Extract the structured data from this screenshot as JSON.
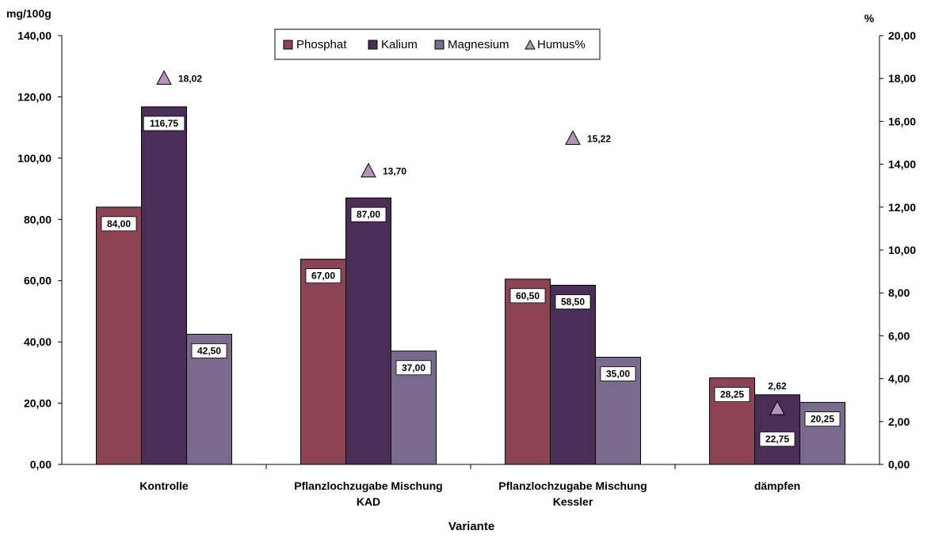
{
  "chart_data": {
    "type": "bar",
    "y_left_unit": "mg/100g",
    "y_right_unit": "%",
    "xlabel": "Variante",
    "categories": [
      [
        "Kontrolle"
      ],
      [
        "Pflanzlochzugabe Mischung",
        "KAD"
      ],
      [
        "Pflanzlochzugabe Mischung",
        "Kessler"
      ],
      [
        "dämpfen"
      ]
    ],
    "ylim_left": [
      0,
      140
    ],
    "ylim_right": [
      0,
      20
    ],
    "y_left_ticks": [
      "0,00",
      "20,00",
      "40,00",
      "60,00",
      "80,00",
      "100,00",
      "120,00",
      "140,00"
    ],
    "y_right_ticks": [
      "0,00",
      "2,00",
      "4,00",
      "6,00",
      "8,00",
      "10,00",
      "12,00",
      "14,00",
      "16,00",
      "18,00",
      "20,00"
    ],
    "series": [
      {
        "name": "Phosphat",
        "axis": "left",
        "kind": "bar",
        "color": "#8c4454",
        "values": [
          84.0,
          67.0,
          60.5,
          28.25
        ],
        "labels": [
          "84,00",
          "67,00",
          "60,50",
          "28,25"
        ]
      },
      {
        "name": "Kalium",
        "axis": "left",
        "kind": "bar",
        "color": "#4b2e57",
        "values": [
          116.75,
          87.0,
          58.5,
          22.75
        ],
        "labels": [
          "116,75",
          "87,00",
          "58,50",
          "22,75"
        ]
      },
      {
        "name": "Magnesium",
        "axis": "left",
        "kind": "bar",
        "color": "#7a6a8e",
        "values": [
          42.5,
          37.0,
          35.0,
          20.25
        ],
        "labels": [
          "42,50",
          "37,00",
          "35,00",
          "20,25"
        ]
      },
      {
        "name": "Humus%",
        "axis": "right",
        "kind": "marker",
        "marker": "triangle",
        "color": "#b592b8",
        "values": [
          18.02,
          13.7,
          15.22,
          2.62
        ],
        "labels": [
          "18,02",
          "13,70",
          "15,22",
          "2,62"
        ]
      }
    ],
    "legend": {
      "position": "top-center"
    },
    "grid": false
  }
}
